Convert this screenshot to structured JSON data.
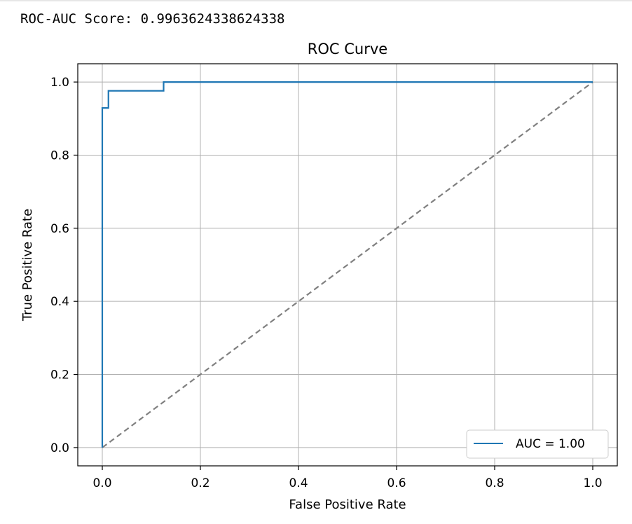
{
  "output": {
    "text": "ROC-AUC Score: 0.9963624338624338"
  },
  "colors": {
    "curve": "#1f77b4",
    "diagonal": "#808080",
    "grid": "#b0b0b0",
    "axes": "#000000"
  },
  "chart_data": {
    "type": "line",
    "title": "ROC Curve",
    "xlabel": "False Positive Rate",
    "ylabel": "True Positive Rate",
    "xlim": [
      -0.05,
      1.05
    ],
    "ylim": [
      -0.05,
      1.05
    ],
    "grid": true,
    "legend_position": "lower-right",
    "xticks": [
      0.0,
      0.2,
      0.4,
      0.6,
      0.8,
      1.0
    ],
    "xtick_labels": [
      "0.0",
      "0.2",
      "0.4",
      "0.6",
      "0.8",
      "1.0"
    ],
    "yticks": [
      0.0,
      0.2,
      0.4,
      0.6,
      0.8,
      1.0
    ],
    "ytick_labels": [
      "0.0",
      "0.2",
      "0.4",
      "0.6",
      "0.8",
      "1.0"
    ],
    "series": [
      {
        "name": "AUC = 1.00",
        "style": "solid",
        "color": "#1f77b4",
        "x": [
          0.0,
          0.0,
          0.0,
          0.0125,
          0.0125,
          0.125,
          0.125,
          1.0
        ],
        "y": [
          0.0,
          0.929,
          0.929,
          0.929,
          0.976,
          0.976,
          1.0,
          1.0
        ]
      },
      {
        "style": "dashed",
        "color": "#808080",
        "x": [
          0.0,
          1.0
        ],
        "y": [
          0.0,
          1.0
        ]
      }
    ]
  }
}
